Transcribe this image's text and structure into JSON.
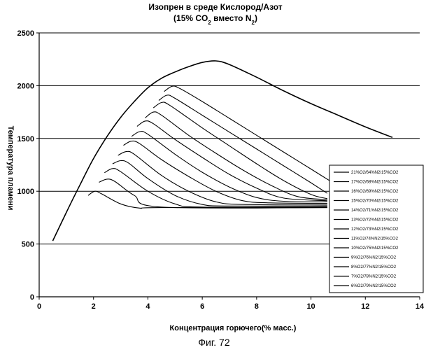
{
  "chart_data": {
    "type": "line",
    "title": "Изопрен в среде Кислород/Азот",
    "subtitle_parts": [
      "(15% CO",
      "2",
      " вместо N",
      "2",
      ")"
    ],
    "xlabel": "Концентрация горючего(% масс.)",
    "ylabel": "Температура пламени",
    "xlim": [
      0,
      14
    ],
    "ylim": [
      0,
      2500
    ],
    "x_ticks": [
      0,
      2,
      4,
      6,
      8,
      10,
      12,
      14
    ],
    "y_ticks": [
      0,
      500,
      1000,
      1500,
      2000,
      2500
    ],
    "grid": "horizontal",
    "legend_position": "right",
    "series": [
      {
        "name": "21%O2/64%N2/15%CO2",
        "x": [
          0.5,
          1.0,
          1.5,
          2.0,
          2.5,
          3.0,
          3.5,
          4.0,
          4.5,
          5.0,
          5.5,
          6.0,
          6.5,
          7.0,
          8.0,
          9.0,
          10.0,
          11.0,
          12.0,
          13.0
        ],
        "values": [
          530,
          800,
          1060,
          1310,
          1520,
          1700,
          1850,
          1980,
          2070,
          2130,
          2180,
          2220,
          2235,
          2200,
          2080,
          1950,
          1830,
          1720,
          1610,
          1510
        ]
      },
      {
        "name": "17%O2/68%N2/15%CO2",
        "x": [
          4.6,
          4.9,
          5.2,
          6.0,
          7.0,
          8.0,
          9.0,
          10.0,
          11.0
        ],
        "values": [
          1945,
          1995,
          1970,
          1850,
          1690,
          1530,
          1370,
          1210,
          1050
        ]
      },
      {
        "name": "16%O2/69%N2/15%CO2",
        "x": [
          4.4,
          4.7,
          5.0,
          6.0,
          7.0,
          8.0,
          9.0,
          10.0,
          10.6
        ],
        "values": [
          1860,
          1910,
          1880,
          1720,
          1560,
          1400,
          1240,
          1080,
          980
        ]
      },
      {
        "name": "15%O2/70%N2/15%CO2",
        "x": [
          4.2,
          4.5,
          4.8,
          6.0,
          7.0,
          8.0,
          9.0,
          10.0,
          10.6
        ],
        "values": [
          1790,
          1840,
          1815,
          1600,
          1430,
          1260,
          1100,
          970,
          930
        ]
      },
      {
        "name": "14%O2/71%N2/15%CO2",
        "x": [
          3.9,
          4.2,
          4.5,
          5.5,
          6.5,
          7.5,
          8.5,
          9.5,
          10.6
        ],
        "values": [
          1695,
          1750,
          1720,
          1530,
          1360,
          1200,
          1060,
          950,
          920
        ]
      },
      {
        "name": "13%O2/72%N2/15%CO2",
        "x": [
          3.6,
          3.9,
          4.2,
          5.0,
          6.0,
          7.0,
          8.0,
          9.0,
          10.6
        ],
        "values": [
          1615,
          1665,
          1640,
          1490,
          1320,
          1160,
          1030,
          935,
          910
        ]
      },
      {
        "name": "12%O2/73%N2/15%CO2",
        "x": [
          3.4,
          3.7,
          4.0,
          5.0,
          6.0,
          7.0,
          8.0,
          9.0,
          10.6
        ],
        "values": [
          1520,
          1565,
          1540,
          1350,
          1180,
          1040,
          940,
          905,
          900
        ]
      },
      {
        "name": "11%O2/74%N2/15%CO2",
        "x": [
          3.1,
          3.4,
          3.7,
          4.5,
          5.5,
          6.5,
          7.5,
          8.5,
          10.6
        ],
        "values": [
          1435,
          1475,
          1450,
          1300,
          1140,
          1000,
          910,
          890,
          885
        ]
      },
      {
        "name": "10%O2/75%N2/15%CO2",
        "x": [
          2.9,
          3.2,
          3.5,
          4.5,
          5.5,
          6.5,
          7.5,
          10.6
        ],
        "values": [
          1340,
          1375,
          1350,
          1150,
          1000,
          900,
          875,
          870
        ]
      },
      {
        "name": "9%O2/76%N2/15%CO2",
        "x": [
          2.7,
          3.0,
          3.3,
          4.0,
          5.0,
          6.0,
          7.0,
          10.6
        ],
        "values": [
          1260,
          1290,
          1265,
          1120,
          960,
          875,
          860,
          860
        ]
      },
      {
        "name": "8%O2/77%N2/15%CO2",
        "x": [
          2.4,
          2.7,
          3.0,
          4.0,
          5.0,
          6.0,
          10.6
        ],
        "values": [
          1175,
          1215,
          1185,
          1000,
          880,
          850,
          850
        ]
      },
      {
        "name": "7%O2/78%N2/15%CO2",
        "x": [
          2.2,
          2.5,
          2.8,
          3.5,
          4.5,
          10.6
        ],
        "values": [
          1085,
          1115,
          1090,
          960,
          850,
          845
        ]
      },
      {
        "name": "6%O2/79%N2/15%CO2",
        "x": [
          1.8,
          2.05,
          2.3,
          3.0,
          3.7,
          4.5,
          10.6
        ],
        "values": [
          960,
          1000,
          975,
          880,
          840,
          845,
          845
        ]
      }
    ]
  },
  "caption": "Фиг. 72"
}
